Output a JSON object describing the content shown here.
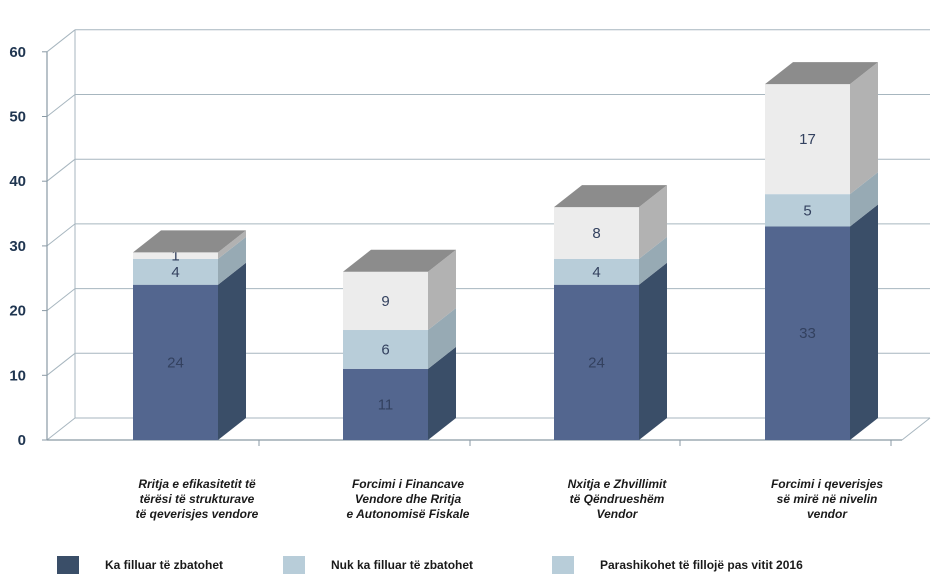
{
  "chart_data": {
    "type": "bar",
    "stacked": true,
    "view": "3d",
    "categories": [
      [
        "Rritja e efikasitetit të",
        "tërësi të strukturave",
        "të qeverisjes vendore"
      ],
      [
        "Forcimi i Financave",
        "Vendore dhe Rritja",
        "e Autonomisë Fiskale"
      ],
      [
        "Nxitja e Zhvillimit",
        "të Qëndrueshëm",
        "Vendor"
      ],
      [
        "Forcimi i qeverisjes",
        "së mirë në nivelin",
        "vendor"
      ]
    ],
    "series": [
      {
        "name": "Ka filluar të zbatohet",
        "values": [
          24,
          11,
          24,
          33
        ]
      },
      {
        "name": "Nuk ka filluar të zbatohet",
        "values": [
          4,
          6,
          4,
          5
        ]
      },
      {
        "name": "Parashikohet të fillojë pas vitit 2016",
        "values": [
          1,
          9,
          8,
          17
        ]
      }
    ],
    "ylim": [
      0,
      60
    ],
    "yticks": [
      "0",
      "10",
      "20",
      "30",
      "40",
      "50",
      "60"
    ],
    "grid": true,
    "legend_position": "bottom",
    "colors": {
      "series_front": [
        "#53668f",
        "#b8cdd9",
        "#ececec"
      ],
      "series_side": [
        "#3a4e68",
        "#97aab4",
        "#b2b2b2"
      ],
      "top_face": "#8c8c8c",
      "label_dark": "#33415f",
      "legend_swatches": [
        "#3a4e68",
        "#b8cdd9",
        "#b8cdd9"
      ]
    }
  }
}
